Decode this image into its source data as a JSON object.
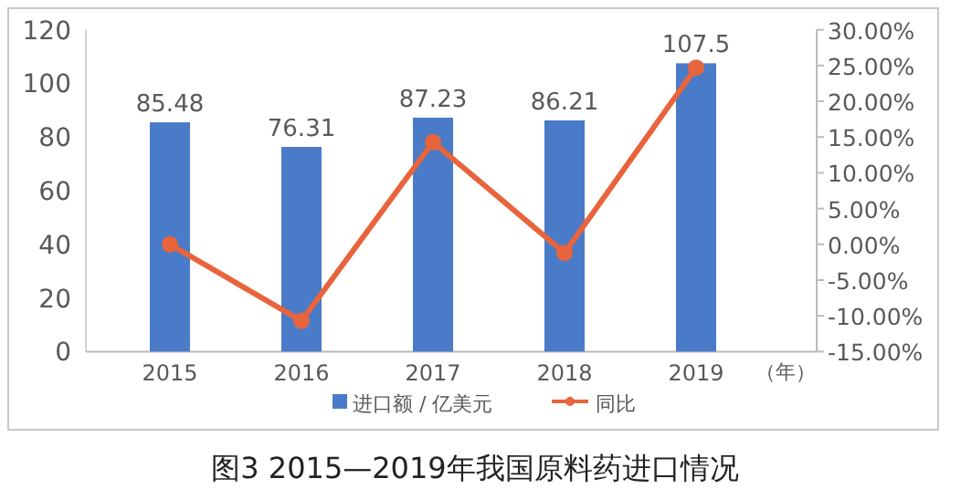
{
  "chart_data": {
    "type": "bar",
    "title": "图3 2015—2019年我国原料药进口情况",
    "xlabel": "（年）",
    "categories": [
      "2015",
      "2016",
      "2017",
      "2018",
      "2019"
    ],
    "series": [
      {
        "name": "进口额 / 亿美元",
        "color": "#4a7bc8",
        "values": [
          85.48,
          76.31,
          87.23,
          86.21,
          107.5
        ],
        "value_labels": [
          "85.48",
          "76.31",
          "87.23",
          "86.21",
          "107.5"
        ]
      },
      {
        "name": "同比",
        "type": "line",
        "axis": "y2",
        "color": "#e8643c",
        "marker": "circle",
        "values": [
          0,
          -10.7,
          14.3,
          -1.2,
          24.7
        ]
      }
    ],
    "ylim": [
      0,
      120
    ],
    "yticks": [
      0,
      20,
      40,
      60,
      80,
      100,
      120
    ],
    "y2lim": [
      -15,
      30
    ],
    "y2ticks": [
      {
        "value": 30,
        "label": "30.00%"
      },
      {
        "value": 25,
        "label": "25.00%"
      },
      {
        "value": 20,
        "label": "20.00%"
      },
      {
        "value": 15,
        "label": "15.00%"
      },
      {
        "value": 10,
        "label": "10.00%"
      },
      {
        "value": 5,
        "label": "5.00%"
      },
      {
        "value": 0,
        "label": "0.00%"
      },
      {
        "value": -5,
        "label": "-5.00%"
      },
      {
        "value": -10,
        "label": "-10.00%"
      },
      {
        "value": -15,
        "label": "-15.00%"
      }
    ],
    "grid": false,
    "legend": "bottom"
  }
}
